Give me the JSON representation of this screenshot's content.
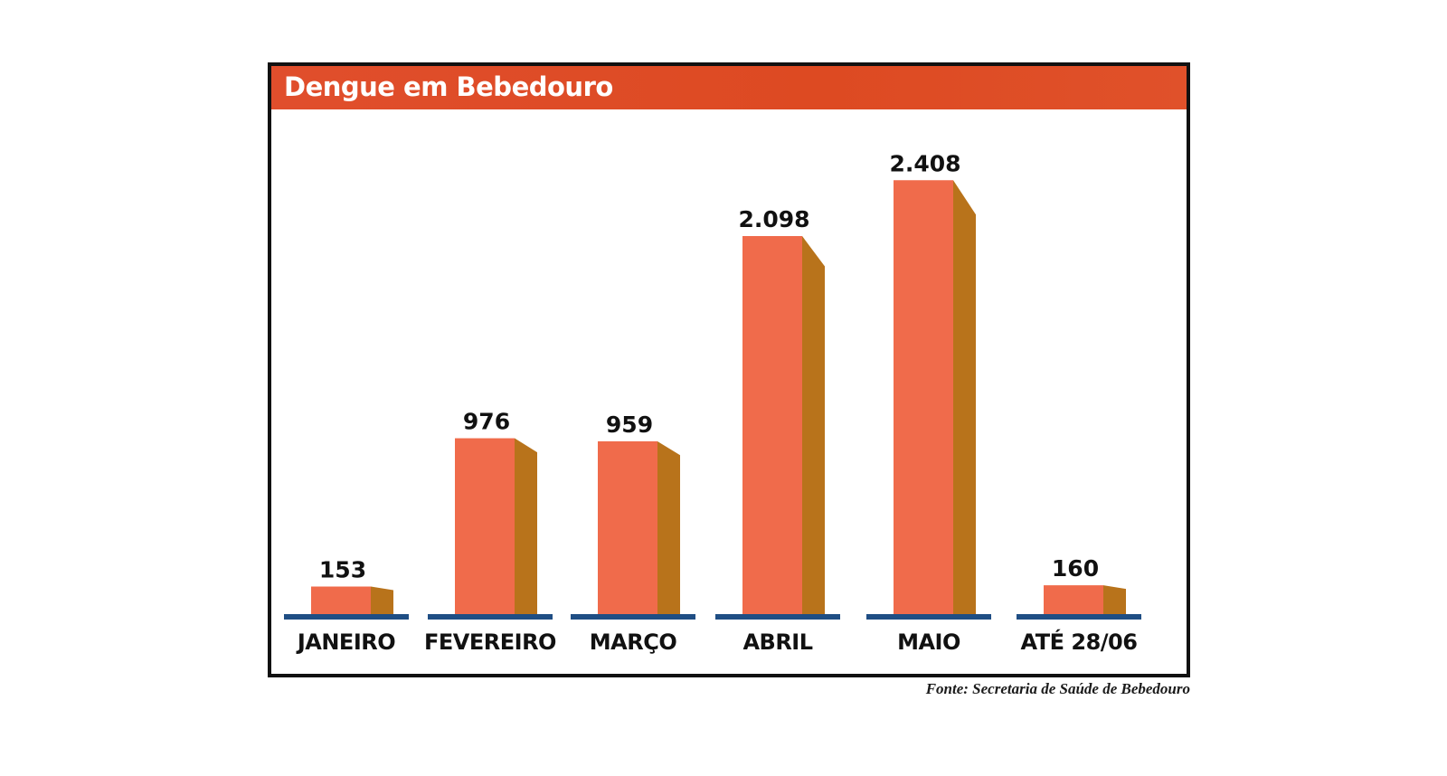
{
  "colors": {
    "title_bar": "#e04e2c",
    "bar_front": "#f06b4b",
    "bar_side": "#b8731b",
    "baseline": "#1f4e84",
    "frame": "#111111"
  },
  "chart_data": {
    "type": "bar",
    "title": "Dengue em Bebedouro",
    "categories": [
      "JANEIRO",
      "FEVEREIRO",
      "MARÇO",
      "ABRIL",
      "MAIO",
      "ATÉ 28/06"
    ],
    "values": [
      153,
      976,
      959,
      2098,
      2408,
      160
    ],
    "value_labels": [
      "153",
      "976",
      "959",
      "2.098",
      "2.408",
      "160"
    ],
    "xlabel": "",
    "ylabel": "",
    "ylim": [
      0,
      2600
    ],
    "grid": false,
    "legend": "none",
    "source": "Fonte: Secretaria de Saúde de Bebedouro"
  }
}
